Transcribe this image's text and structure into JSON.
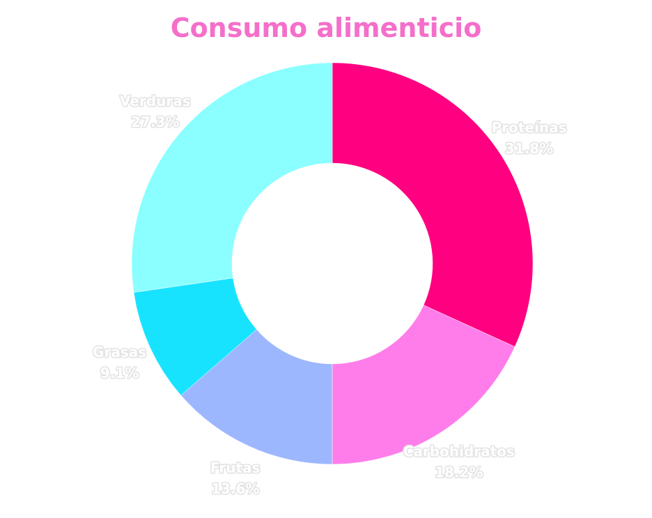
{
  "chart_data": {
    "type": "pie",
    "title": "Consumo alimenticio",
    "hole": 0.5,
    "categories": [
      "Proteínas",
      "Carbohidratos",
      "Frutas",
      "Grasas",
      "Verduras"
    ],
    "values": [
      31.8,
      18.2,
      13.6,
      9.1,
      27.3
    ],
    "percent_labels": [
      "31.8%",
      "18.2%",
      "13.6%",
      "9.1%",
      "27.3%"
    ],
    "colors": [
      "#ff0080",
      "#ff7deb",
      "#9db7ff",
      "#17e3ff",
      "#8bffff"
    ],
    "legend": "none"
  }
}
